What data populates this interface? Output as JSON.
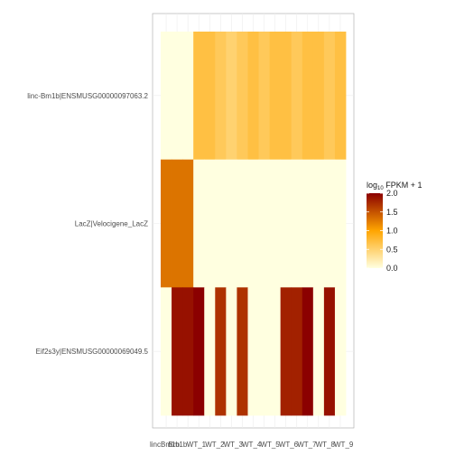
{
  "chart_data": {
    "type": "heatmap",
    "title": "",
    "xlabel": "",
    "ylabel": "",
    "rows": [
      "linc-Bm1b|ENSMUSG00000097063.2",
      "LacZ|Velocigene_LacZ",
      "Eif2s3y|ENSMUSG00000069049.5"
    ],
    "x_tick_labels": [
      "lincBm1b",
      "Bm1b",
      "WT_1",
      "WT_2",
      "WT_3",
      "WT_4",
      "WT_5",
      "WT_6",
      "WT_7",
      "WT_8",
      "WT_9"
    ],
    "n_columns": 17,
    "values": [
      [
        0.0,
        0.0,
        0.0,
        0.7,
        0.7,
        0.6,
        0.5,
        0.6,
        0.7,
        0.6,
        0.7,
        0.7,
        0.6,
        0.7,
        0.7,
        0.6,
        0.7
      ],
      [
        1.3,
        1.3,
        1.3,
        0.0,
        0.0,
        0.0,
        0.0,
        0.0,
        0.0,
        0.0,
        0.0,
        0.0,
        0.0,
        0.0,
        0.0,
        0.0,
        0.0
      ],
      [
        0.0,
        1.9,
        1.9,
        2.0,
        0.0,
        1.7,
        0.0,
        1.7,
        0.0,
        0.0,
        0.0,
        1.8,
        1.8,
        2.0,
        0.0,
        1.9,
        0.0
      ]
    ],
    "legend": {
      "title_prefix": "log",
      "title_sub": "10",
      "title_suffix": " FPKM + 1",
      "range": [
        0,
        2
      ],
      "ticks": [
        "2.0",
        "1.5",
        "1.0",
        "0.5",
        "0.0"
      ],
      "colors": [
        "#ffffe0",
        "#ffa500",
        "#8b0000"
      ]
    },
    "grid": true,
    "legend_position": "right"
  }
}
